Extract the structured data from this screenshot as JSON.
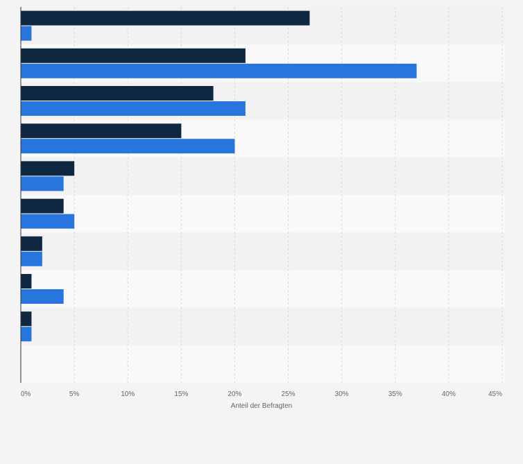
{
  "chart_data": {
    "type": "bar",
    "orientation": "horizontal",
    "categories": [
      "",
      "",
      "",
      "",
      "",
      "",
      "",
      "",
      "",
      ""
    ],
    "series": [
      {
        "values": [
          27,
          21,
          18,
          15,
          5,
          4,
          2,
          1,
          1,
          null
        ],
        "color": "#0f2741"
      },
      {
        "values": [
          1,
          37,
          21,
          20,
          4,
          5,
          2,
          4,
          1,
          null
        ],
        "color": "#2876dd"
      }
    ],
    "title": "",
    "xlabel": "Anteil der Befragten",
    "ylabel": "",
    "xlim": [
      0,
      45
    ],
    "xticks": [
      0,
      5,
      10,
      15,
      20,
      25,
      30,
      35,
      40,
      45
    ],
    "xtick_labels": [
      "0%",
      "5%",
      "10%",
      "15%",
      "20%",
      "25%",
      "30%",
      "35%",
      "40%",
      "45%"
    ],
    "grid": true,
    "legend": "none",
    "colors": {
      "background": "#f4f4f4",
      "band_light": "#f9f9f9",
      "band_dark": "#f2f2f2",
      "gridline": "#d8d8d8",
      "axis": "#333333",
      "text": "#666666"
    }
  }
}
